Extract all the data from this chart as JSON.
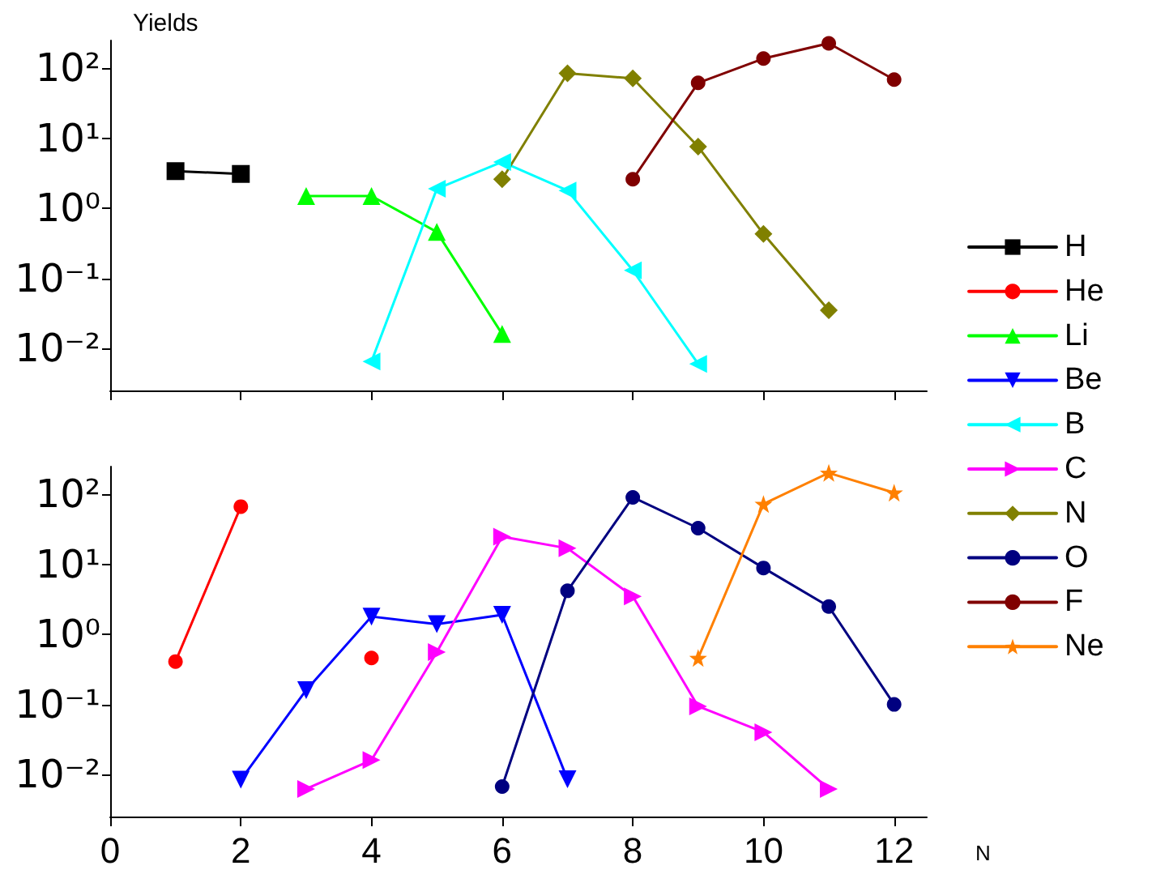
{
  "chart_data": [
    {
      "type": "line",
      "ylabel": "Yields",
      "log": "y",
      "xlim": [
        0,
        12.5
      ],
      "xticks": [
        0,
        2,
        4,
        6,
        8,
        10,
        12
      ],
      "ylim": [
        0.0025,
        250
      ],
      "yticks": [
        {
          "value": 0.01,
          "label": "10⁻²"
        },
        {
          "value": 0.1,
          "label": "10⁻¹"
        },
        {
          "value": 1,
          "label": "10⁰"
        },
        {
          "value": 10,
          "label": "10¹"
        },
        {
          "value": 100,
          "label": "10²"
        }
      ],
      "tick_labels": "y",
      "grid": false,
      "legend": "right",
      "line_style": "solid",
      "series": [
        {
          "name": "H",
          "color": "#000000",
          "marker": "square",
          "x": [
            1,
            2
          ],
          "values": [
            3.4,
            3.1
          ]
        },
        {
          "name": "Li",
          "color": "#00ff00",
          "marker": "triangle",
          "x": [
            3,
            4,
            5,
            6
          ],
          "values": [
            1.5,
            1.5,
            0.46,
            0.016
          ]
        },
        {
          "name": "B",
          "color": "#00ffff",
          "marker": "triangle-left",
          "x": [
            4,
            5,
            6,
            7,
            8,
            9
          ],
          "values": [
            0.0065,
            1.9,
            4.6,
            1.8,
            0.13,
            0.006
          ]
        },
        {
          "name": "N",
          "color": "#808000",
          "marker": "diamond",
          "x": [
            6,
            7,
            8,
            9,
            10,
            11
          ],
          "values": [
            2.6,
            85,
            72,
            7.6,
            0.43,
            0.035
          ]
        },
        {
          "name": "F",
          "color": "#800000",
          "marker": "circle",
          "x": [
            8,
            9,
            10,
            11,
            12
          ],
          "values": [
            2.6,
            62,
            138,
            228,
            69
          ]
        }
      ]
    },
    {
      "type": "line",
      "xlabel": "N",
      "log": "y",
      "xlim": [
        0,
        12.5
      ],
      "xticks": [
        0,
        2,
        4,
        6,
        8,
        10,
        12
      ],
      "ylim": [
        0.0025,
        250
      ],
      "yticks": [
        {
          "value": 0.01,
          "label": "10⁻²"
        },
        {
          "value": 0.1,
          "label": "10⁻¹"
        },
        {
          "value": 1,
          "label": "10⁰"
        },
        {
          "value": 10,
          "label": "10¹"
        },
        {
          "value": 100,
          "label": "10²"
        }
      ],
      "grid": false,
      "legend": "right",
      "line_style": "solid",
      "series": [
        {
          "name": "He",
          "color": "#ff0000",
          "marker": "circle",
          "x": [
            1,
            2,
            3,
            4
          ],
          "values": [
            0.41,
            67,
            null,
            0.46
          ]
        },
        {
          "name": "Be",
          "color": "#0000ff",
          "marker": "triangle-down",
          "x": [
            2,
            3,
            4,
            5,
            6,
            7
          ],
          "values": [
            0.0084,
            0.16,
            1.8,
            1.4,
            1.9,
            0.0085
          ]
        },
        {
          "name": "C",
          "color": "#ff00ff",
          "marker": "triangle-right",
          "x": [
            3,
            4,
            5,
            6,
            7,
            8,
            9,
            10,
            11
          ],
          "values": [
            0.0062,
            0.016,
            0.56,
            25,
            17,
            3.5,
            0.094,
            0.04,
            0.0062
          ]
        },
        {
          "name": "O",
          "color": "#000080",
          "marker": "circle",
          "x": [
            6,
            7,
            8,
            9,
            10,
            11,
            12
          ],
          "values": [
            0.0067,
            4.2,
            91,
            33,
            8.9,
            2.5,
            0.1
          ]
        },
        {
          "name": "Ne",
          "color": "#ff8000",
          "marker": "star",
          "x": [
            9,
            10,
            11,
            12
          ],
          "values": [
            0.46,
            73,
            203,
            106
          ]
        }
      ]
    }
  ]
}
